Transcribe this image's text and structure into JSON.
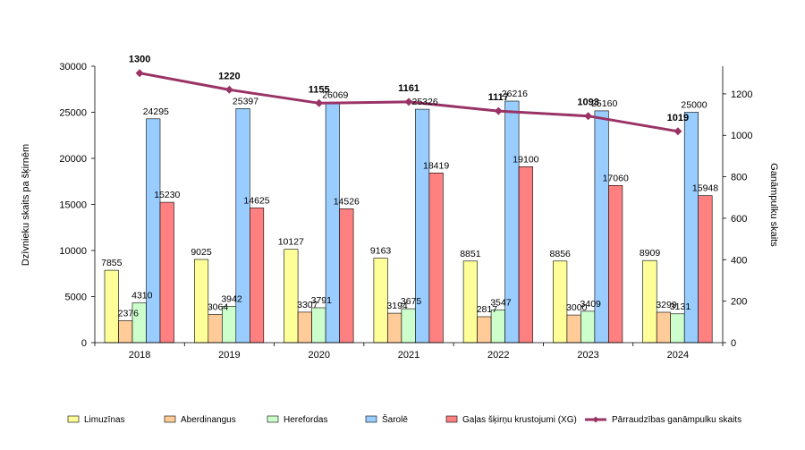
{
  "chart_data": {
    "type": "bar",
    "categories": [
      "2018",
      "2019",
      "2020",
      "2021",
      "2022",
      "2023",
      "2024"
    ],
    "series": [
      {
        "name": "Limuzīnas",
        "color": "#ffff99",
        "values": [
          7855,
          9025,
          10127,
          9163,
          8851,
          8856,
          8909
        ]
      },
      {
        "name": "Aberdinangus",
        "color": "#ffcc99",
        "values": [
          2376,
          3064,
          3307,
          3194,
          2817,
          3000,
          3299
        ]
      },
      {
        "name": "Herefordas",
        "color": "#ccffcc",
        "values": [
          4310,
          3942,
          3791,
          3675,
          3547,
          3409,
          3131
        ]
      },
      {
        "name": "Šarolē",
        "color": "#99ccff",
        "values": [
          24295,
          25397,
          26069,
          25326,
          26216,
          25160,
          25000
        ]
      },
      {
        "name": "Gaļas šķirņu krustojumi (XG)",
        "color": "#ff8080",
        "values": [
          15230,
          14625,
          14526,
          18419,
          19100,
          17060,
          15948
        ]
      }
    ],
    "line_series": {
      "name": "Pārraudzības ganāmpulku skaits",
      "color": "#993366",
      "values": [
        1300,
        1220,
        1155,
        1161,
        1117,
        1093,
        1019
      ]
    },
    "ylabel": "Dzīvnieku skaits pa šķirnēm",
    "y2label": "Ganāmpulku skaits",
    "ylim": [
      0,
      30000
    ],
    "y2lim": [
      0,
      1333.33
    ],
    "yticks": [
      "0",
      "5000",
      "10000",
      "15000",
      "20000",
      "25000",
      "30000"
    ],
    "y2ticks": [
      "0",
      "200",
      "400",
      "600",
      "800",
      "1000",
      "1200"
    ],
    "legend_position": "bottom",
    "grid": false
  }
}
